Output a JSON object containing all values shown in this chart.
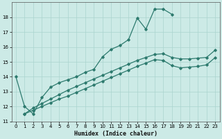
{
  "title": "",
  "xlabel": "Humidex (Indice chaleur)",
  "ylabel": "",
  "bg_color": "#cceae6",
  "line_color": "#2d7a6e",
  "grid_color": "#aad4cf",
  "xlim": [
    -0.5,
    23.5
  ],
  "ylim": [
    11,
    19
  ],
  "xticks": [
    0,
    1,
    2,
    3,
    4,
    5,
    6,
    7,
    8,
    9,
    10,
    11,
    12,
    13,
    14,
    15,
    16,
    17,
    18,
    19,
    20,
    21,
    22,
    23
  ],
  "yticks": [
    11,
    12,
    13,
    14,
    15,
    16,
    17,
    18
  ],
  "line1_x": [
    0,
    1,
    2,
    3,
    4,
    5,
    6,
    7,
    8,
    9,
    10,
    11,
    12,
    13,
    14,
    15,
    16,
    17,
    18
  ],
  "line1_y": [
    14.0,
    12.0,
    11.5,
    12.6,
    13.3,
    13.6,
    13.8,
    14.0,
    14.3,
    14.5,
    15.35,
    15.85,
    16.1,
    16.5,
    17.95,
    17.2,
    18.55,
    18.55,
    18.2
  ],
  "line2_x": [
    1,
    2,
    3,
    4,
    5,
    6,
    7,
    8,
    9,
    10,
    11,
    12,
    13,
    14,
    15,
    16,
    17,
    18,
    19,
    20,
    21,
    22,
    23
  ],
  "line2_y": [
    11.5,
    11.9,
    12.2,
    12.5,
    12.8,
    13.1,
    13.35,
    13.6,
    13.85,
    14.1,
    14.35,
    14.6,
    14.85,
    15.1,
    15.3,
    15.5,
    15.55,
    15.3,
    15.2,
    15.2,
    15.25,
    15.3,
    15.8
  ],
  "line3_x": [
    1,
    2,
    3,
    4,
    5,
    6,
    7,
    8,
    9,
    10,
    11,
    12,
    13,
    14,
    15,
    16,
    17,
    18,
    19,
    20,
    21,
    22,
    23
  ],
  "line3_y": [
    11.5,
    11.75,
    12.0,
    12.25,
    12.5,
    12.7,
    12.95,
    13.2,
    13.45,
    13.7,
    13.95,
    14.2,
    14.45,
    14.7,
    14.92,
    15.15,
    15.1,
    14.75,
    14.6,
    14.65,
    14.7,
    14.8,
    15.3
  ]
}
